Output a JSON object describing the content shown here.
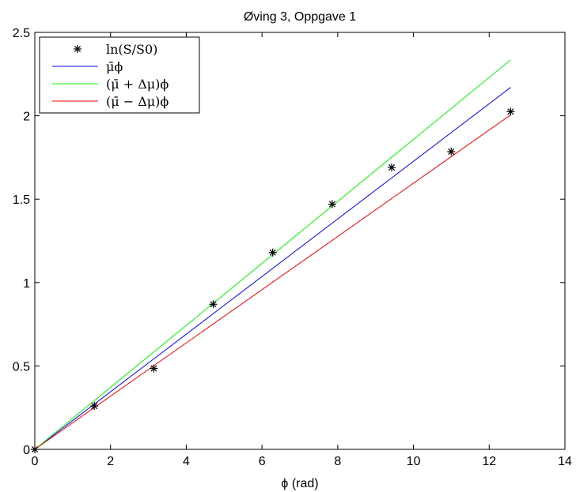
{
  "chart_data": {
    "type": "line",
    "title": "Øving 3, Oppgave 1",
    "xlabel": "ϕ (rad)",
    "ylabel": "",
    "xlim": [
      0,
      14
    ],
    "ylim": [
      0,
      2.5
    ],
    "xticks": [
      0,
      2,
      4,
      6,
      8,
      10,
      12,
      14
    ],
    "xtick_labels": [
      "0",
      "2",
      "4",
      "6",
      "8",
      "10",
      "12",
      "14"
    ],
    "yticks": [
      0,
      0.5,
      1,
      1.5,
      2,
      2.5
    ],
    "ytick_labels": [
      "0",
      "0.5",
      "1",
      "1.5",
      "2",
      "2.5"
    ],
    "grid": false,
    "legend_position": "top-left",
    "series": [
      {
        "name": "ln(S/S0)",
        "kind": "marker",
        "marker": "*",
        "color": "#000000",
        "x": [
          0,
          1.571,
          3.142,
          4.712,
          6.283,
          7.854,
          9.425,
          10.996,
          12.566
        ],
        "y": [
          0,
          0.26,
          0.485,
          0.87,
          1.18,
          1.47,
          1.69,
          1.785,
          2.025
        ]
      },
      {
        "name": "μ̄ϕ",
        "kind": "line",
        "color": "#0000ff",
        "x": [
          0,
          12.566
        ],
        "y": [
          0,
          2.17
        ]
      },
      {
        "name": "(μ̄ + Δμ)ϕ",
        "kind": "line",
        "color": "#00ff00",
        "x": [
          0,
          12.566
        ],
        "y": [
          0,
          2.335
        ]
      },
      {
        "name": "(μ̄ − Δμ)ϕ",
        "kind": "line",
        "color": "#ff0000",
        "x": [
          0,
          12.566
        ],
        "y": [
          0,
          2.005
        ]
      }
    ]
  }
}
